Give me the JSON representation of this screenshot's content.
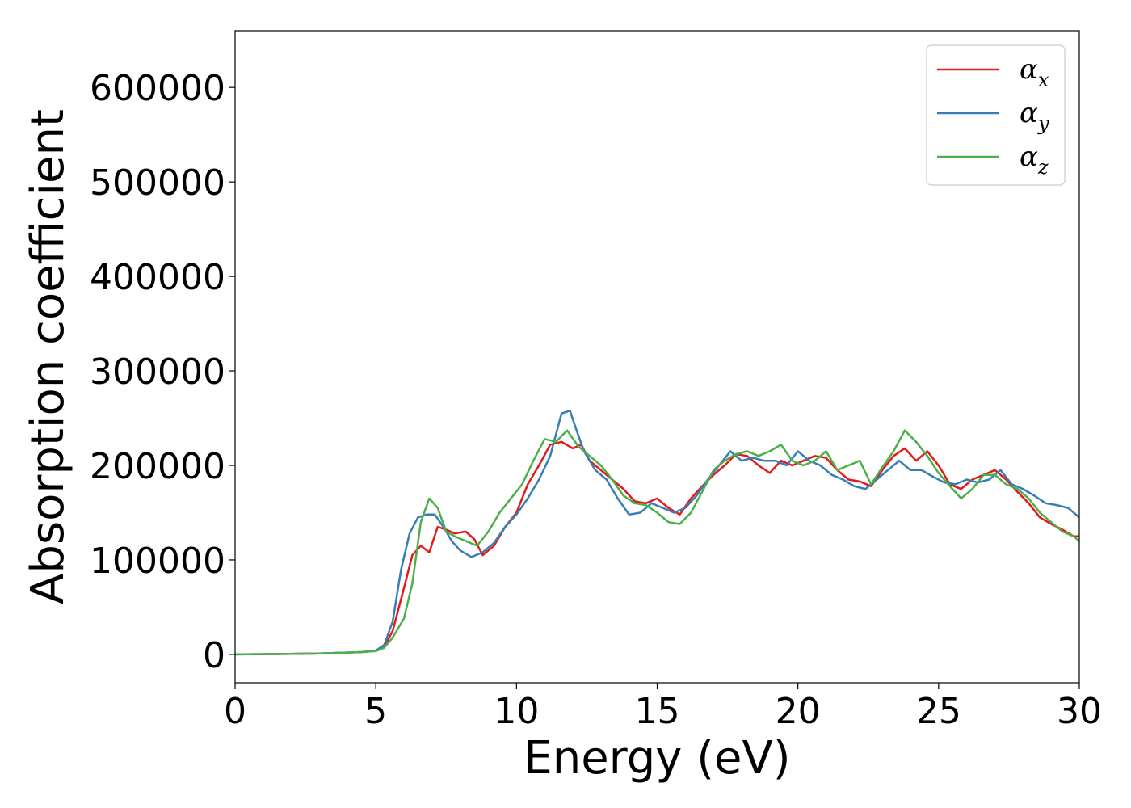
{
  "chart_data": {
    "type": "line",
    "title": "",
    "xlabel": "Energy (eV)",
    "ylabel": "Absorption coefficient",
    "xlim": [
      0,
      30
    ],
    "ylim": [
      -30000,
      660000
    ],
    "xticks": [
      "0",
      "5",
      "10",
      "15",
      "20",
      "25",
      "30"
    ],
    "yticks": [
      "0",
      "100000",
      "200000",
      "300000",
      "400000",
      "500000",
      "600000"
    ],
    "grid": false,
    "legend_position": "top-right",
    "series": [
      {
        "name": "αx",
        "legend_symbol": "α",
        "legend_sub": "x",
        "color": "#e41a1c",
        "x": [
          0,
          2,
          3,
          4,
          4.5,
          5,
          5.3,
          5.6,
          6.0,
          6.3,
          6.6,
          6.9,
          7.2,
          7.5,
          7.8,
          8.2,
          8.5,
          8.8,
          9.2,
          9.6,
          10.0,
          10.4,
          10.8,
          11.2,
          11.6,
          12.0,
          12.3,
          12.6,
          13.0,
          13.4,
          13.8,
          14.2,
          14.6,
          15.0,
          15.4,
          15.8,
          16.2,
          16.6,
          17.0,
          17.4,
          17.8,
          18.2,
          18.6,
          19.0,
          19.4,
          19.8,
          20.2,
          20.6,
          21.0,
          21.4,
          21.8,
          22.2,
          22.6,
          23.0,
          23.4,
          23.8,
          24.2,
          24.6,
          25.0,
          25.4,
          25.8,
          26.2,
          26.6,
          27.0,
          27.4,
          27.8,
          28.2,
          28.6,
          29.0,
          29.4,
          29.8,
          30.0
        ],
        "values": [
          0,
          500,
          1000,
          2000,
          2500,
          4000,
          8000,
          25000,
          70000,
          105000,
          115000,
          108000,
          135000,
          132000,
          128000,
          130000,
          122000,
          105000,
          115000,
          135000,
          150000,
          180000,
          200000,
          222000,
          225000,
          218000,
          222000,
          205000,
          195000,
          185000,
          175000,
          162000,
          160000,
          165000,
          155000,
          148000,
          165000,
          178000,
          190000,
          200000,
          212000,
          210000,
          200000,
          192000,
          205000,
          200000,
          205000,
          210000,
          208000,
          195000,
          185000,
          183000,
          178000,
          195000,
          210000,
          218000,
          205000,
          215000,
          200000,
          180000,
          175000,
          185000,
          190000,
          195000,
          185000,
          172000,
          160000,
          145000,
          138000,
          132000,
          125000,
          125000
        ]
      },
      {
        "name": "αy",
        "legend_symbol": "α",
        "legend_sub": "y",
        "color": "#377eb8",
        "x": [
          0,
          2,
          3,
          4,
          4.5,
          5,
          5.3,
          5.6,
          5.9,
          6.2,
          6.5,
          6.8,
          7.1,
          7.4,
          7.7,
          8.0,
          8.4,
          8.8,
          9.2,
          9.6,
          10.0,
          10.4,
          10.8,
          11.2,
          11.6,
          11.9,
          12.1,
          12.4,
          12.8,
          13.2,
          13.6,
          14.0,
          14.4,
          14.8,
          15.2,
          15.6,
          16.0,
          16.4,
          16.8,
          17.2,
          17.6,
          18.0,
          18.4,
          18.8,
          19.2,
          19.6,
          20.0,
          20.4,
          20.8,
          21.2,
          21.6,
          22.0,
          22.4,
          22.8,
          23.2,
          23.6,
          24.0,
          24.4,
          24.8,
          25.2,
          25.6,
          26.0,
          26.4,
          26.8,
          27.2,
          27.6,
          28.0,
          28.4,
          28.8,
          29.2,
          29.6,
          30.0
        ],
        "values": [
          0,
          500,
          1000,
          2000,
          2500,
          4000,
          10000,
          35000,
          90000,
          128000,
          145000,
          148000,
          148000,
          135000,
          120000,
          110000,
          103000,
          108000,
          118000,
          135000,
          148000,
          165000,
          185000,
          210000,
          255000,
          258000,
          240000,
          215000,
          195000,
          185000,
          165000,
          148000,
          150000,
          160000,
          155000,
          150000,
          155000,
          168000,
          185000,
          200000,
          215000,
          205000,
          208000,
          205000,
          205000,
          200000,
          215000,
          205000,
          200000,
          190000,
          185000,
          178000,
          175000,
          185000,
          195000,
          205000,
          195000,
          195000,
          188000,
          182000,
          180000,
          185000,
          182000,
          185000,
          195000,
          180000,
          175000,
          168000,
          160000,
          158000,
          155000,
          145000
        ]
      },
      {
        "name": "αz",
        "legend_symbol": "α",
        "legend_sub": "z",
        "color": "#4daf4a",
        "x": [
          0,
          2,
          3,
          4,
          4.5,
          5,
          5.3,
          5.6,
          6.0,
          6.3,
          6.6,
          6.9,
          7.2,
          7.5,
          7.8,
          8.2,
          8.6,
          9.0,
          9.4,
          9.8,
          10.2,
          10.6,
          11.0,
          11.4,
          11.8,
          12.2,
          12.6,
          13.0,
          13.4,
          13.8,
          14.2,
          14.6,
          15.0,
          15.4,
          15.8,
          16.2,
          16.6,
          17.0,
          17.4,
          17.8,
          18.2,
          18.6,
          19.0,
          19.4,
          19.8,
          20.2,
          20.6,
          21.0,
          21.4,
          21.8,
          22.2,
          22.6,
          23.0,
          23.4,
          23.8,
          24.2,
          24.6,
          25.0,
          25.4,
          25.8,
          26.2,
          26.6,
          27.0,
          27.4,
          27.8,
          28.2,
          28.6,
          29.0,
          29.4,
          29.8,
          30.0
        ],
        "values": [
          0,
          500,
          1000,
          2000,
          2500,
          3500,
          7000,
          18000,
          38000,
          75000,
          140000,
          165000,
          155000,
          130000,
          125000,
          120000,
          115000,
          130000,
          150000,
          165000,
          180000,
          205000,
          228000,
          225000,
          237000,
          220000,
          210000,
          200000,
          185000,
          168000,
          160000,
          158000,
          150000,
          140000,
          138000,
          150000,
          172000,
          195000,
          205000,
          212000,
          215000,
          210000,
          215000,
          222000,
          205000,
          200000,
          205000,
          215000,
          195000,
          200000,
          205000,
          180000,
          198000,
          215000,
          237000,
          225000,
          210000,
          192000,
          178000,
          165000,
          175000,
          190000,
          190000,
          180000,
          175000,
          165000,
          150000,
          140000,
          130000,
          125000,
          120000
        ]
      }
    ]
  }
}
